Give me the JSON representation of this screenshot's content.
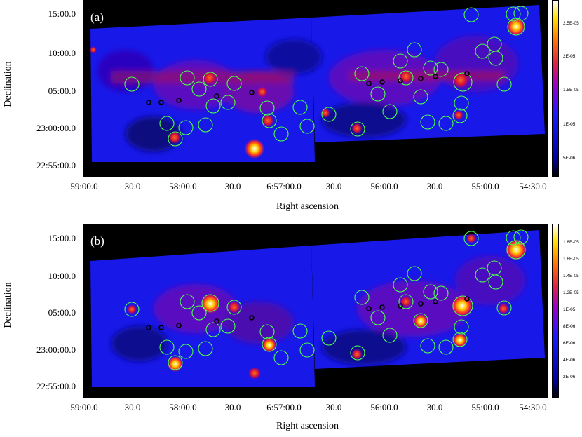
{
  "panel_a": {
    "label": "(a)",
    "y_ticks": [
      "15:00.0",
      "10:00.0",
      "05:00.0",
      "23:00:00.0",
      "22:55:00.0"
    ],
    "x_ticks": [
      "59:00.0",
      "30.0",
      "58:00.0",
      "30.0",
      "6:57:00.0",
      "30.0",
      "56:00.0",
      "30.0",
      "55:00.0",
      "54:30.0"
    ],
    "colorbar_ticks": [
      "2.5E-05",
      "2E-05",
      "1.5E-05",
      "1E-05",
      "5E-06"
    ],
    "xlabel": "Right ascension",
    "ylabel": "Declination"
  },
  "panel_b": {
    "label": "(b)",
    "y_ticks": [
      "15:00.0",
      "10:00.0",
      "05:00.0",
      "23:00:00.0",
      "22:55:00.0"
    ],
    "x_ticks": [
      "59:00.0",
      "30.0",
      "58:00.0",
      "30.0",
      "6:57:00.0",
      "30.0",
      "56:00.0",
      "30.0",
      "55:00.0",
      "54:30.0"
    ],
    "colorbar_ticks": [
      "1.8E-05",
      "1.6E-05",
      "1.4E-05",
      "1.2E-05",
      "1E-05",
      "8E-06",
      "6E-06",
      "4E-06",
      "2E-06"
    ],
    "xlabel": "Right ascension",
    "ylabel": "Declination"
  },
  "colors": {
    "background": "#000000",
    "low_emission": "#1a1aff",
    "high_emission": "#ffffff",
    "source_circle": "#4cff4c",
    "marker": "#000000"
  }
}
